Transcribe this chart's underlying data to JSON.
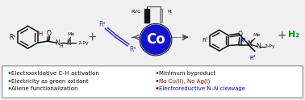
{
  "bg_color": "#f0f0f0",
  "box_color": "#ffffff",
  "box_edge": "#888888",
  "co_circle_color": "#1414cc",
  "co_text_color": "#ffffff",
  "bullet_color_green": "#008000",
  "bullet_color_blue": "#0000cc",
  "text_dark": "#111111",
  "text_red": "#880000",
  "text_blue": "#0000cc",
  "text_green": "#008000",
  "h2_color": "#009900",
  "bullet_left": [
    [
      "green",
      "Electrooxidative C–H activation"
    ],
    [
      "green",
      "Electricity as green oxidant"
    ],
    [
      "green",
      "Allene functionalization"
    ]
  ],
  "bullet_right": [
    [
      "green",
      "Minimum byproduct"
    ],
    [
      "red",
      "No Cu(II), No Ag(I)"
    ],
    [
      "blue",
      "Electroreductive N–N cleavage"
    ]
  ]
}
